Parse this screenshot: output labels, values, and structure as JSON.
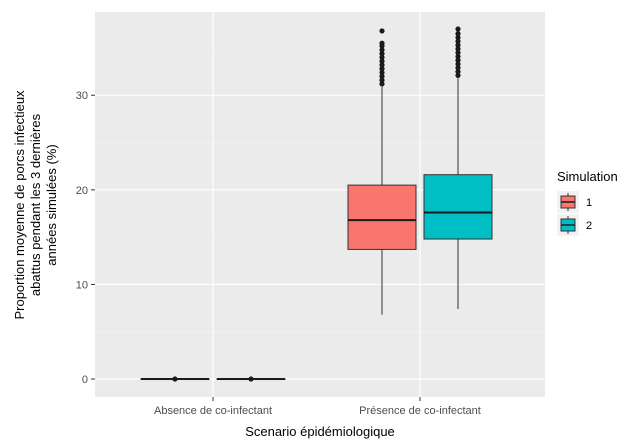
{
  "chart_data": {
    "type": "box",
    "xlabel": "Scenario épidémiologique",
    "ylabel_lines": [
      "Proportion moyenne de porcs infectieux",
      "abattus pendant les 3 dernières",
      "années simulées (%)"
    ],
    "categories": [
      "Absence de co-infectant",
      "Présence de co-infectant"
    ],
    "y_ticks": [
      0,
      10,
      20,
      30
    ],
    "ylim": [
      -1.9,
      38.8
    ],
    "grid": true,
    "legend": {
      "title": "Simulation",
      "position": "right",
      "entries": [
        "1",
        "2"
      ]
    },
    "series": [
      {
        "name": "1",
        "color": "#F8766D",
        "boxes": [
          {
            "category": "Absence de co-infectant",
            "min": 0,
            "q1": 0,
            "median": 0,
            "q3": 0,
            "max": 0,
            "outliers": [
              0
            ]
          },
          {
            "category": "Présence de co-infectant",
            "min": 6.8,
            "q1": 13.7,
            "median": 16.8,
            "q3": 20.5,
            "max": 30.9,
            "outliers": [
              31.2,
              31.6,
              32.0,
              32.4,
              32.8,
              33.2,
              33.6,
              34.0,
              34.4,
              34.8,
              35.2,
              35.5,
              36.8
            ]
          }
        ]
      },
      {
        "name": "2",
        "color": "#00BFC4",
        "boxes": [
          {
            "category": "Absence de co-infectant",
            "min": 0,
            "q1": 0,
            "median": 0,
            "q3": 0,
            "max": 0,
            "outliers": [
              0
            ]
          },
          {
            "category": "Présence de co-infectant",
            "min": 7.4,
            "q1": 14.8,
            "median": 17.6,
            "q3": 21.6,
            "max": 31.8,
            "outliers": [
              32.1,
              32.5,
              32.9,
              33.3,
              33.7,
              34.1,
              34.5,
              34.9,
              35.3,
              35.7,
              36.1,
              36.5,
              37.0
            ]
          }
        ]
      }
    ]
  }
}
